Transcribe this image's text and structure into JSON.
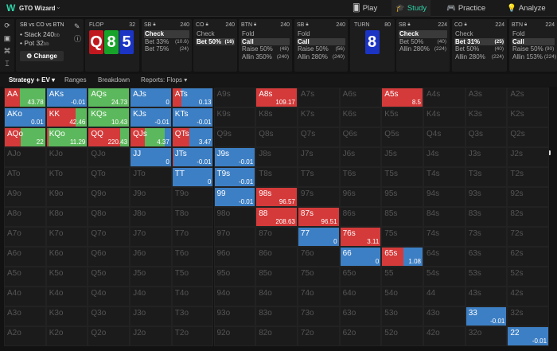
{
  "app": {
    "logo": "W",
    "title": "GTO Wizard",
    "chevron": "⌄"
  },
  "nav": [
    {
      "icon": "🂠",
      "label": "Play"
    },
    {
      "icon": "🎓",
      "label": "Study"
    },
    {
      "icon": "🎮",
      "label": "Practice"
    },
    {
      "icon": "💡",
      "label": "Analyze"
    }
  ],
  "scenario": {
    "title": "SB vs CO vs BTN",
    "stack": "• Stack 240",
    "stack_unit": "bb",
    "pot": "• Pot 32",
    "pot_unit": "bb",
    "change": "⚙ Change"
  },
  "flop": {
    "label": "FLOP",
    "pot": "32",
    "cards": [
      {
        "rank": "Q",
        "color": "#c0181e"
      },
      {
        "rank": "8",
        "color": "#17a32a"
      },
      {
        "rank": "5",
        "color": "#1b34c4"
      }
    ]
  },
  "turn": {
    "label": "TURN",
    "pot": "80",
    "cards": [
      {
        "rank": "8",
        "color": "#1b34c4"
      }
    ]
  },
  "panels": [
    {
      "pos": "SB",
      "stack": "240",
      "actions": [
        {
          "label": "Check",
          "size": "",
          "sel": true
        },
        {
          "label": "Bet 33%",
          "size": "(10.6)"
        },
        {
          "label": "Bet 75%",
          "size": "(24)"
        }
      ]
    },
    {
      "pos": "CO",
      "stack": "240",
      "actions": [
        {
          "label": "Check",
          "size": ""
        },
        {
          "label": "Bet 50%",
          "size": "(16)",
          "sel": true
        }
      ]
    },
    {
      "pos": "BTN",
      "stack": "240",
      "actions": [
        {
          "label": "Fold",
          "size": ""
        },
        {
          "label": "Call",
          "size": "",
          "sel": true
        },
        {
          "label": "Raise 50%",
          "size": "(48)"
        },
        {
          "label": "Allin 350%",
          "size": "(240)"
        }
      ]
    },
    {
      "pos": "SB",
      "stack": "240",
      "actions": [
        {
          "label": "Fold",
          "size": ""
        },
        {
          "label": "Call",
          "size": "",
          "sel": true
        },
        {
          "label": "Raise 50%",
          "size": "(56)"
        },
        {
          "label": "Allin 280%",
          "size": "(240)"
        }
      ]
    },
    {
      "pos": "SB",
      "stack": "224",
      "actions": [
        {
          "label": "Check",
          "size": "",
          "sel": true
        },
        {
          "label": "Bet 50%",
          "size": "(40)"
        },
        {
          "label": "Allin 280%",
          "size": "(224)"
        }
      ]
    },
    {
      "pos": "CO",
      "stack": "224",
      "actions": [
        {
          "label": "Check",
          "size": ""
        },
        {
          "label": "Bet 31%",
          "size": "(25)",
          "sel": true
        },
        {
          "label": "Bet 50%",
          "size": "(40)"
        },
        {
          "label": "Allin 280%",
          "size": "(224)"
        }
      ]
    },
    {
      "pos": "BTN",
      "stack": "224",
      "actions": [
        {
          "label": "Fold",
          "size": ""
        },
        {
          "label": "Call",
          "size": "",
          "sel": true
        },
        {
          "label": "Raise 50%",
          "size": "(90)"
        },
        {
          "label": "Allin 153%",
          "size": "(224)"
        }
      ]
    }
  ],
  "tabs": [
    "Strategy + EV ▾",
    "Ranges",
    "Breakdown",
    "Reports: Flops ▾"
  ],
  "colors": {
    "red": "#d43a3a",
    "green": "#5cb85c",
    "blue": "#3d7fc4"
  },
  "grid": {
    "ranks": [
      "A",
      "K",
      "Q",
      "J",
      "T",
      "9",
      "8",
      "7",
      "6",
      "5",
      "4",
      "3",
      "2"
    ],
    "active": {
      "AA": {
        "ev": "43.78",
        "mix": [
          [
            "red",
            0.37
          ],
          [
            "green",
            0.63
          ]
        ]
      },
      "AKs": {
        "ev": "-0.01",
        "mix": [
          [
            "blue",
            1
          ]
        ]
      },
      "AQs": {
        "ev": "24.73",
        "mix": [
          [
            "green",
            1
          ]
        ]
      },
      "AJs": {
        "ev": "0",
        "mix": [
          [
            "blue",
            1
          ]
        ]
      },
      "ATs": {
        "ev": "0.13",
        "mix": [
          [
            "red",
            0.22
          ],
          [
            "blue",
            0.78
          ]
        ]
      },
      "A8s": {
        "ev": "109.17",
        "mix": [
          [
            "red",
            1
          ]
        ]
      },
      "A5s": {
        "ev": "8.5",
        "mix": [
          [
            "red",
            1
          ]
        ]
      },
      "AKo": {
        "ev": "0.01",
        "mix": [
          [
            "blue",
            1
          ]
        ]
      },
      "KK": {
        "ev": "42.46",
        "mix": [
          [
            "red",
            0.72
          ],
          [
            "green",
            0.28
          ]
        ]
      },
      "KQs": {
        "ev": "10.43",
        "mix": [
          [
            "green",
            1
          ]
        ]
      },
      "KJs": {
        "ev": "-0.01",
        "mix": [
          [
            "blue",
            1
          ]
        ]
      },
      "KTs": {
        "ev": "-0.01",
        "mix": [
          [
            "blue",
            1
          ]
        ]
      },
      "AQo": {
        "ev": "22",
        "mix": [
          [
            "red",
            0.4
          ],
          [
            "green",
            0.6
          ]
        ]
      },
      "KQo": {
        "ev": "11.29",
        "mix": [
          [
            "red",
            0.04
          ],
          [
            "green",
            0.96
          ]
        ]
      },
      "QQ": {
        "ev": "220.43",
        "mix": [
          [
            "red",
            0.78
          ],
          [
            "green",
            0.22
          ]
        ]
      },
      "QJs": {
        "ev": "4.37",
        "mix": [
          [
            "red",
            0.36
          ],
          [
            "green",
            0.49
          ],
          [
            "blue",
            0.15
          ]
        ]
      },
      "QTs": {
        "ev": "3.47",
        "mix": [
          [
            "red",
            0.41
          ],
          [
            "blue",
            0.59
          ]
        ]
      },
      "JJ": {
        "ev": "0",
        "mix": [
          [
            "blue",
            1
          ]
        ]
      },
      "JTs": {
        "ev": "-0.01",
        "mix": [
          [
            "red",
            0.02
          ],
          [
            "blue",
            0.98
          ]
        ]
      },
      "J9s": {
        "ev": "-0.01",
        "mix": [
          [
            "blue",
            1
          ]
        ]
      },
      "TT": {
        "ev": "0",
        "mix": [
          [
            "blue",
            1
          ]
        ]
      },
      "T9s": {
        "ev": "-0.01",
        "mix": [
          [
            "blue",
            1
          ]
        ]
      },
      "99": {
        "ev": "-0.01",
        "mix": [
          [
            "blue",
            1
          ]
        ]
      },
      "98s": {
        "ev": "96.57",
        "mix": [
          [
            "red",
            1
          ]
        ]
      },
      "88": {
        "ev": "208.63",
        "mix": [
          [
            "red",
            1
          ]
        ]
      },
      "87s": {
        "ev": "96.51",
        "mix": [
          [
            "red",
            1
          ]
        ]
      },
      "77": {
        "ev": "0",
        "mix": [
          [
            "blue",
            1
          ]
        ]
      },
      "76s": {
        "ev": "3.11",
        "mix": [
          [
            "red",
            1
          ]
        ]
      },
      "66": {
        "ev": "0",
        "mix": [
          [
            "blue",
            1
          ]
        ]
      },
      "65s": {
        "ev": "1.08",
        "mix": [
          [
            "red",
            0.52
          ],
          [
            "blue",
            0.48
          ]
        ]
      },
      "33": {
        "ev": "-0.01",
        "mix": [
          [
            "blue",
            1
          ]
        ]
      },
      "22": {
        "ev": "-0.01",
        "mix": [
          [
            "blue",
            1
          ]
        ]
      }
    }
  }
}
